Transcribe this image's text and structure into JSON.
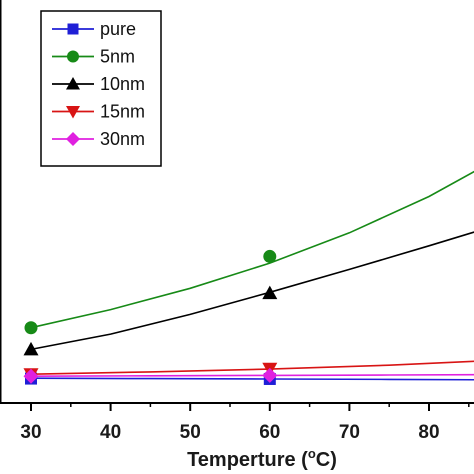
{
  "chart_data": {
    "type": "line",
    "title": "",
    "xlabel": "Temperture (",
    "xlabel_sup": "o",
    "xlabel_unit": "C)",
    "ylabel": "",
    "xlim": [
      27,
      87
    ],
    "ylim": [
      0,
      1.0
    ],
    "xticks": [
      "30",
      "40",
      "50",
      "60",
      "70",
      "80"
    ],
    "legend_position": "top-left",
    "series": [
      {
        "name": "pure",
        "color": "#1f1fd6",
        "marker": "square",
        "points": [
          [
            30,
            0.062
          ],
          [
            60,
            0.061
          ]
        ],
        "fit": [
          [
            30,
            0.063
          ],
          [
            45,
            0.062
          ],
          [
            60,
            0.061
          ],
          [
            75,
            0.06
          ],
          [
            87,
            0.059
          ]
        ]
      },
      {
        "name": "5nm",
        "color": "#178a17",
        "marker": "circle",
        "points": [
          [
            30,
            0.191
          ],
          [
            60,
            0.372
          ]
        ],
        "fit": [
          [
            30,
            0.191
          ],
          [
            40,
            0.237
          ],
          [
            50,
            0.291
          ],
          [
            60,
            0.355
          ],
          [
            70,
            0.432
          ],
          [
            80,
            0.524
          ],
          [
            87,
            0.602
          ]
        ]
      },
      {
        "name": "10nm",
        "color": "#000000",
        "marker": "triangle-up",
        "points": [
          [
            30,
            0.136
          ],
          [
            60,
            0.279
          ]
        ],
        "fit": [
          [
            30,
            0.136
          ],
          [
            40,
            0.175
          ],
          [
            50,
            0.225
          ],
          [
            60,
            0.281
          ],
          [
            70,
            0.339
          ],
          [
            80,
            0.399
          ],
          [
            87,
            0.442
          ]
        ]
      },
      {
        "name": "15nm",
        "color": "#d81414",
        "marker": "triangle-down",
        "points": [
          [
            30,
            0.073
          ],
          [
            60,
            0.087
          ]
        ],
        "fit": [
          [
            30,
            0.073
          ],
          [
            45,
            0.079
          ],
          [
            60,
            0.086
          ],
          [
            75,
            0.096
          ],
          [
            87,
            0.107
          ]
        ]
      },
      {
        "name": "30nm",
        "color": "#e020e0",
        "marker": "diamond",
        "points": [
          [
            30,
            0.068
          ],
          [
            60,
            0.07
          ]
        ],
        "fit": [
          [
            30,
            0.068
          ],
          [
            45,
            0.069
          ],
          [
            60,
            0.07
          ],
          [
            75,
            0.071
          ],
          [
            87,
            0.072
          ]
        ]
      }
    ]
  }
}
